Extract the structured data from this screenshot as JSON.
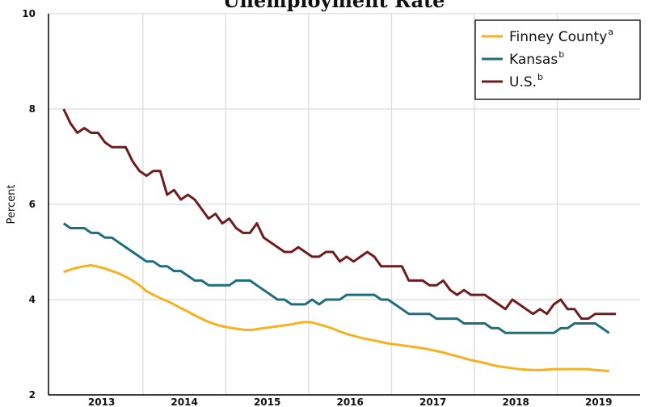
{
  "chart_data": {
    "type": "line",
    "title": "Unemployment Rate",
    "ylabel": "Percent",
    "x": [
      2013.042,
      2013.125,
      2013.208,
      2013.292,
      2013.375,
      2013.458,
      2013.542,
      2013.625,
      2013.708,
      2013.792,
      2013.875,
      2013.958,
      2014.042,
      2014.125,
      2014.208,
      2014.292,
      2014.375,
      2014.458,
      2014.542,
      2014.625,
      2014.708,
      2014.792,
      2014.875,
      2014.958,
      2015.042,
      2015.125,
      2015.208,
      2015.292,
      2015.375,
      2015.458,
      2015.542,
      2015.625,
      2015.708,
      2015.792,
      2015.875,
      2015.958,
      2016.042,
      2016.125,
      2016.208,
      2016.292,
      2016.375,
      2016.458,
      2016.542,
      2016.625,
      2016.708,
      2016.792,
      2016.875,
      2016.958,
      2017.042,
      2017.125,
      2017.208,
      2017.292,
      2017.375,
      2017.458,
      2017.542,
      2017.625,
      2017.708,
      2017.792,
      2017.875,
      2017.958,
      2018.042,
      2018.125,
      2018.208,
      2018.292,
      2018.375,
      2018.458,
      2018.542,
      2018.625,
      2018.708,
      2018.792,
      2018.875,
      2018.958,
      2019.042,
      2019.125,
      2019.208,
      2019.292,
      2019.375,
      2019.458,
      2019.542,
      2019.625,
      2019.708
    ],
    "series": [
      {
        "name": "Finney County",
        "note": "a",
        "color": "#f4b223",
        "values": [
          4.58,
          4.63,
          4.67,
          4.7,
          4.72,
          4.69,
          4.65,
          4.6,
          4.55,
          4.48,
          4.4,
          4.3,
          4.18,
          4.1,
          4.03,
          3.97,
          3.9,
          3.82,
          3.75,
          3.67,
          3.6,
          3.53,
          3.48,
          3.44,
          3.41,
          3.39,
          3.37,
          3.36,
          3.38,
          3.4,
          3.42,
          3.44,
          3.46,
          3.48,
          3.51,
          3.53,
          3.52,
          3.48,
          3.44,
          3.39,
          3.33,
          3.28,
          3.24,
          3.2,
          3.17,
          3.14,
          3.11,
          3.08,
          3.06,
          3.04,
          3.02,
          3.0,
          2.98,
          2.95,
          2.92,
          2.89,
          2.85,
          2.81,
          2.77,
          2.73,
          2.7,
          2.67,
          2.63,
          2.6,
          2.58,
          2.56,
          2.54,
          2.53,
          2.52,
          2.52,
          2.53,
          2.54,
          2.54,
          2.54,
          2.54,
          2.54,
          2.54,
          2.52,
          2.51,
          2.5,
          null
        ]
      },
      {
        "name": "Kansas",
        "note": "b",
        "color": "#1e6e80",
        "values": [
          5.6,
          5.5,
          5.5,
          5.5,
          5.4,
          5.4,
          5.3,
          5.3,
          5.2,
          5.1,
          5.0,
          4.9,
          4.8,
          4.8,
          4.7,
          4.7,
          4.6,
          4.6,
          4.5,
          4.4,
          4.4,
          4.3,
          4.3,
          4.3,
          4.3,
          4.4,
          4.4,
          4.4,
          4.3,
          4.2,
          4.1,
          4.0,
          4.0,
          3.9,
          3.9,
          3.9,
          4.0,
          3.9,
          4.0,
          4.0,
          4.0,
          4.1,
          4.1,
          4.1,
          4.1,
          4.1,
          4.0,
          4.0,
          3.9,
          3.8,
          3.7,
          3.7,
          3.7,
          3.7,
          3.6,
          3.6,
          3.6,
          3.6,
          3.5,
          3.5,
          3.5,
          3.5,
          3.4,
          3.4,
          3.3,
          3.3,
          3.3,
          3.3,
          3.3,
          3.3,
          3.3,
          3.3,
          3.4,
          3.4,
          3.5,
          3.5,
          3.5,
          3.5,
          3.4,
          3.3,
          null
        ]
      },
      {
        "name": "U.S.",
        "note": "b",
        "color": "#6e1c1f",
        "values": [
          8.0,
          7.7,
          7.5,
          7.6,
          7.5,
          7.5,
          7.3,
          7.2,
          7.2,
          7.2,
          6.9,
          6.7,
          6.6,
          6.7,
          6.7,
          6.2,
          6.3,
          6.1,
          6.2,
          6.1,
          5.9,
          5.7,
          5.8,
          5.6,
          5.7,
          5.5,
          5.4,
          5.4,
          5.6,
          5.3,
          5.2,
          5.1,
          5.0,
          5.0,
          5.1,
          5.0,
          4.9,
          4.9,
          5.0,
          5.0,
          4.8,
          4.9,
          4.8,
          4.9,
          5.0,
          4.9,
          4.7,
          4.7,
          4.7,
          4.7,
          4.4,
          4.4,
          4.4,
          4.3,
          4.3,
          4.4,
          4.2,
          4.1,
          4.2,
          4.1,
          4.1,
          4.1,
          4.0,
          3.9,
          3.8,
          4.0,
          3.9,
          3.8,
          3.7,
          3.8,
          3.7,
          3.9,
          4.0,
          3.8,
          3.8,
          3.6,
          3.6,
          3.7,
          3.7,
          3.7,
          3.7
        ]
      }
    ],
    "xlim": [
      2012.86,
      2020
    ],
    "xticks": [
      {
        "value": 2013.5,
        "label": "2013"
      },
      {
        "value": 2014.5,
        "label": "2014"
      },
      {
        "value": 2015.5,
        "label": "2015"
      },
      {
        "value": 2016.5,
        "label": "2016"
      },
      {
        "value": 2017.5,
        "label": "2017"
      },
      {
        "value": 2018.5,
        "label": "2018"
      },
      {
        "value": 2019.5,
        "label": "2019"
      }
    ],
    "xgrid": [
      2014,
      2015,
      2016,
      2017,
      2018,
      2019
    ],
    "ylim": [
      2,
      10
    ],
    "yticks": [
      2,
      4,
      6,
      8,
      10
    ],
    "grid": true,
    "legend": "upper right"
  }
}
